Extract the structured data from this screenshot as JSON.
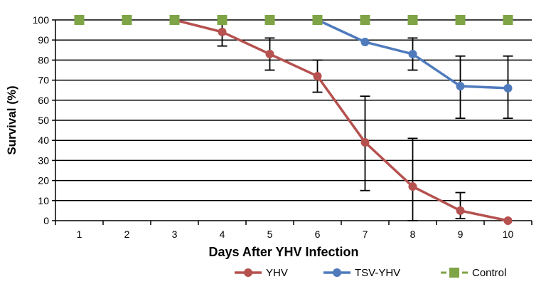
{
  "chart_data": {
    "type": "line",
    "xlabel": "Days After YHV Infection",
    "ylabel": "Survival (%)",
    "categories": [
      "1",
      "2",
      "3",
      "4",
      "5",
      "6",
      "7",
      "8",
      "9",
      "10"
    ],
    "yticks": [
      "0",
      "10",
      "20",
      "30",
      "40",
      "50",
      "60",
      "70",
      "80",
      "90",
      "100"
    ],
    "ylim": [
      0,
      100
    ],
    "grid": true,
    "legend_position": "bottom",
    "series": [
      {
        "name": "YHV",
        "color": "#b5514f",
        "marker": "circle",
        "x": [
          3,
          4,
          5,
          6,
          7,
          8,
          9,
          10
        ],
        "values": [
          100,
          94,
          83,
          72,
          39,
          17,
          5,
          0
        ],
        "error_low": [
          null,
          87,
          75,
          64,
          15,
          0,
          1,
          null
        ],
        "error_high": [
          null,
          100,
          91,
          80,
          62,
          41,
          14,
          null
        ],
        "show_marker": [
          false,
          true,
          true,
          true,
          true,
          true,
          true,
          true
        ]
      },
      {
        "name": "TSV-YHV",
        "color": "#4f7bbd",
        "marker": "circle",
        "x": [
          6,
          7,
          8,
          9,
          10
        ],
        "values": [
          100,
          89,
          83,
          67,
          66
        ],
        "error_low": [
          null,
          null,
          75,
          51,
          51
        ],
        "error_high": [
          null,
          null,
          91,
          82,
          82
        ],
        "show_marker": [
          false,
          true,
          true,
          true,
          true
        ]
      },
      {
        "name": "Control",
        "color": "#7ea446",
        "marker": "square",
        "line": "dashed",
        "x": [
          1,
          2,
          3,
          4,
          5,
          6,
          7,
          8,
          9,
          10
        ],
        "values": [
          100,
          100,
          100,
          100,
          100,
          100,
          100,
          100,
          100,
          100
        ]
      }
    ]
  }
}
